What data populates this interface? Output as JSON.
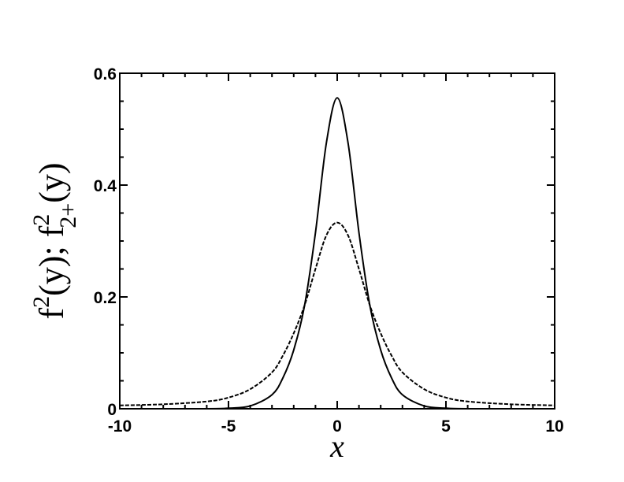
{
  "chart_data": {
    "type": "line",
    "title": "",
    "xlabel": "x",
    "ylabel": {
      "parts": [
        "f",
        "2",
        "(y);  f",
        "2",
        "2+",
        "(y)"
      ]
    },
    "xlim": [
      -10,
      10
    ],
    "ylim": [
      0,
      0.6
    ],
    "x_ticks": [
      -10,
      -5,
      0,
      5,
      10
    ],
    "x_tick_labels": [
      "-10",
      "-5",
      "0",
      "5",
      "10"
    ],
    "y_ticks": [
      0,
      0.2,
      0.4,
      0.6
    ],
    "y_tick_labels": [
      "0",
      "0.2",
      "0.4",
      "0.6"
    ],
    "x_minor_step": 1,
    "y_minor_step": 0.05,
    "grid": false,
    "legend": "none",
    "series": [
      {
        "style": "solid",
        "color": "#000000",
        "x": [
          -10,
          -6,
          -5,
          -4,
          -3,
          -2.5,
          -2,
          -1.5,
          -1,
          -0.5,
          0,
          0.5,
          1,
          1.5,
          2,
          2.5,
          3,
          4,
          5,
          6,
          10
        ],
        "y": [
          0.0,
          0.0,
          0.001,
          0.005,
          0.025,
          0.055,
          0.105,
          0.185,
          0.315,
          0.475,
          0.556,
          0.475,
          0.315,
          0.185,
          0.105,
          0.055,
          0.025,
          0.005,
          0.001,
          0.0,
          0.0
        ]
      },
      {
        "style": "dashed",
        "color": "#000000",
        "x": [
          -10,
          -8,
          -6,
          -5,
          -4,
          -3,
          -2.5,
          -2,
          -1.5,
          -1,
          -0.5,
          0,
          0.5,
          1,
          1.5,
          2,
          2.5,
          3,
          4,
          5,
          6,
          8,
          10
        ],
        "y": [
          0.006,
          0.008,
          0.013,
          0.02,
          0.035,
          0.065,
          0.095,
          0.135,
          0.185,
          0.25,
          0.31,
          0.333,
          0.31,
          0.25,
          0.185,
          0.135,
          0.095,
          0.065,
          0.035,
          0.02,
          0.013,
          0.008,
          0.006
        ]
      }
    ]
  }
}
